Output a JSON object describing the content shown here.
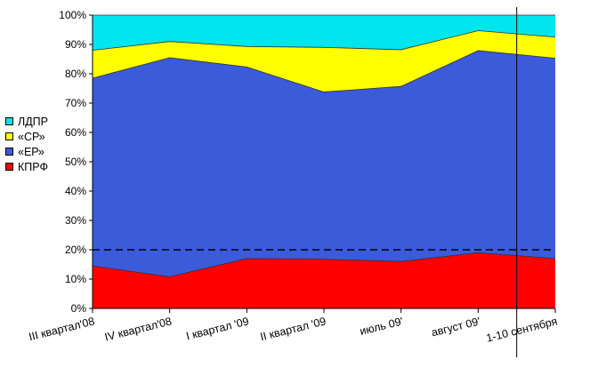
{
  "chart_data": {
    "type": "area",
    "stacked": true,
    "percent": true,
    "categories": [
      "III квартал'08",
      "IV квартал'08",
      "I квартал '09",
      "II квартал '09",
      "июль 09'",
      "август 09'",
      "1-10 сентября"
    ],
    "ylim": [
      0,
      100
    ],
    "yticks": [
      "0%",
      "10%",
      "20%",
      "30%",
      "40%",
      "50%",
      "60%",
      "70%",
      "80%",
      "90%",
      "100%"
    ],
    "series": [
      {
        "name": "КПРФ",
        "color": "#ff0000",
        "values": [
          14.5,
          10.8,
          17,
          16.8,
          16,
          19,
          17
        ]
      },
      {
        "name": "«ЕР»",
        "color": "#3b5bdb",
        "values": [
          64,
          74.7,
          65.3,
          57,
          59.7,
          68.9,
          68.3
        ]
      },
      {
        "name": "«СР»",
        "color": "#ffff00",
        "values": [
          9.5,
          5.5,
          7,
          15.2,
          12.5,
          6.8,
          7.2
        ]
      },
      {
        "name": "ЛДПР",
        "color": "#00e5ee",
        "values": [
          12,
          9,
          10.7,
          11,
          11.8,
          5.3,
          7.5
        ]
      }
    ],
    "legend_order": [
      "ЛДПР",
      "«СР»",
      "«ЕР»",
      "КПРФ"
    ],
    "legend_position": "left",
    "reference_line": {
      "value": 20,
      "style": "dashed"
    },
    "vertical_marker_between": [
      "август 09'",
      "1-10 сентября"
    ]
  }
}
